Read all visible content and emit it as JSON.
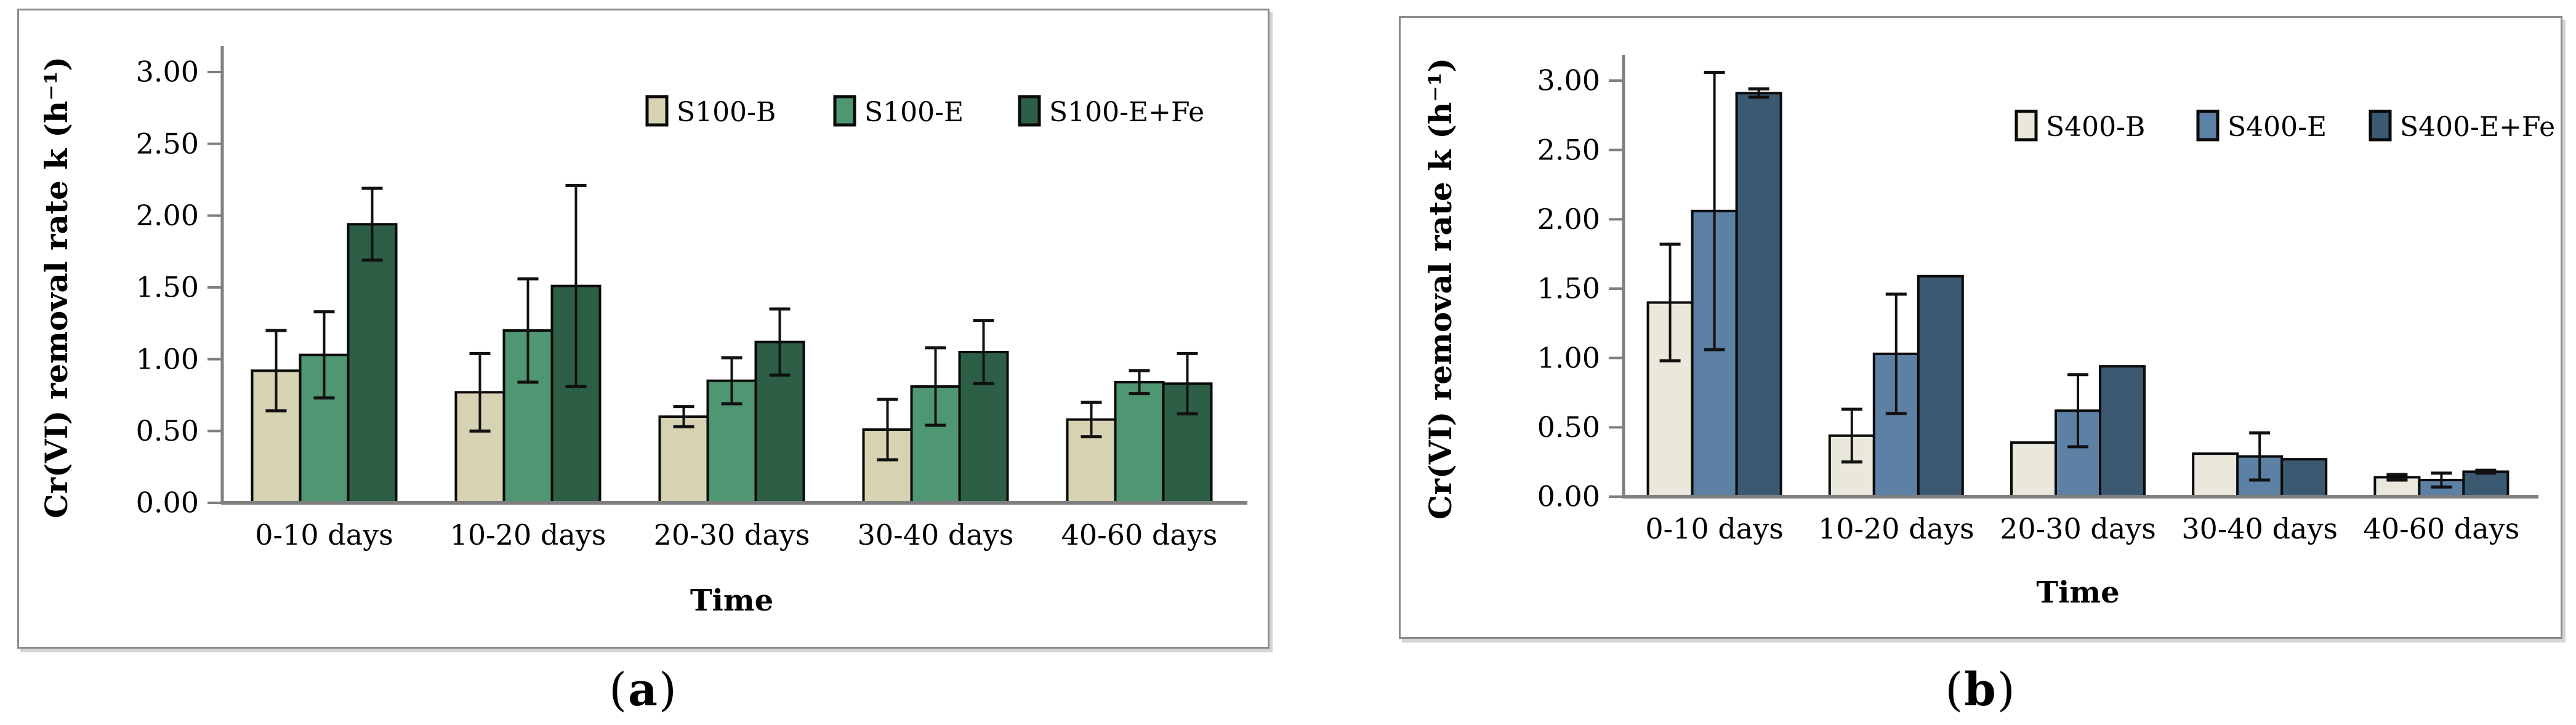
{
  "figure": {
    "background": "#ffffff",
    "panel_border_color": "#8c8c8c",
    "axis_color": "#7f7f7f",
    "error_bar_color": "#111111"
  },
  "chart_data": [
    {
      "id": "a",
      "type": "bar",
      "title": "",
      "xlabel": "Time",
      "ylabel": "Cr(VI) removal rate k (h⁻¹)",
      "ylim": [
        0,
        3.0
      ],
      "ytick_step": 0.5,
      "ytick_labels": [
        "0.00",
        "0.50",
        "1.00",
        "1.50",
        "2.00",
        "2.50",
        "3.00"
      ],
      "categories": [
        "0-10 days",
        "10-20 days",
        "20-30 days",
        "30-40 days",
        "40-60 days"
      ],
      "grid": false,
      "legend_position": "top-right-inside",
      "series": [
        {
          "name": "S100-B",
          "color": "#d6d2b2",
          "values": [
            0.92,
            0.77,
            0.6,
            0.51,
            0.58
          ],
          "errors": [
            0.28,
            0.27,
            0.07,
            0.21,
            0.12
          ]
        },
        {
          "name": "S100-E",
          "color": "#4f9772",
          "values": [
            1.03,
            1.2,
            0.85,
            0.81,
            0.84
          ],
          "errors": [
            0.3,
            0.36,
            0.16,
            0.27,
            0.08
          ]
        },
        {
          "name": "S100-E+Fe",
          "color": "#2c5f45",
          "values": [
            1.94,
            1.51,
            1.12,
            1.05,
            0.83
          ],
          "errors": [
            0.25,
            0.7,
            0.23,
            0.22,
            0.21
          ]
        }
      ],
      "caption": {
        "open": "(",
        "letter": "a",
        "close": ")"
      }
    },
    {
      "id": "b",
      "type": "bar",
      "title": "",
      "xlabel": "Time",
      "ylabel": "Cr(VI) removal rate k (h⁻¹)",
      "ylim": [
        0,
        3.0
      ],
      "ytick_step": 0.5,
      "ytick_labels": [
        "0.00",
        "0.50",
        "1.00",
        "1.50",
        "2.00",
        "2.50",
        "3.00"
      ],
      "categories": [
        "0-10 days",
        "10-20 days",
        "20-30 days",
        "30-40 days",
        "40-60 days"
      ],
      "grid": false,
      "legend_position": "top-right-inside",
      "series": [
        {
          "name": "S400-B",
          "color": "#eae8da",
          "values": [
            1.4,
            0.44,
            0.39,
            0.31,
            0.14
          ],
          "errors": [
            0.42,
            0.19,
            0.0,
            0.0,
            0.02
          ]
        },
        {
          "name": "S400-E",
          "color": "#5d81a5",
          "values": [
            2.06,
            1.03,
            0.62,
            0.29,
            0.12
          ],
          "errors": [
            1.0,
            0.43,
            0.26,
            0.17,
            0.05
          ]
        },
        {
          "name": "S400-E+Fe",
          "color": "#3c5972",
          "values": [
            2.91,
            1.59,
            0.94,
            0.27,
            0.18
          ],
          "errors": [
            0.03,
            0.0,
            0.0,
            0.0,
            0.01
          ]
        }
      ],
      "caption": {
        "open": "(",
        "letter": "b",
        "close": ")"
      }
    }
  ]
}
